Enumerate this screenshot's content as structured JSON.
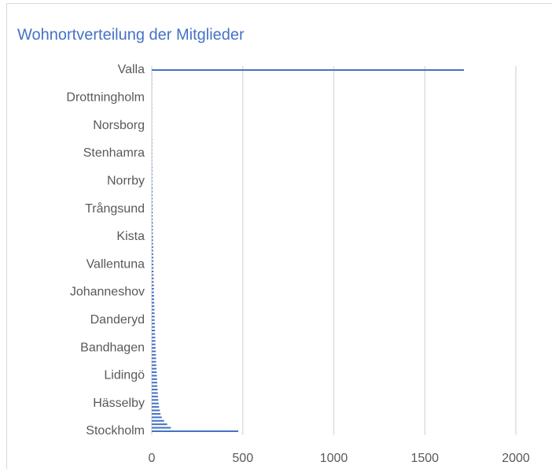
{
  "chart_data": {
    "type": "barh",
    "title": "Wohnortverteilung der Mitglieder",
    "categories": [
      "Stockholm",
      null,
      null,
      null,
      null,
      null,
      null,
      null,
      "Hässelby",
      null,
      null,
      null,
      null,
      null,
      null,
      null,
      "Lidingö",
      null,
      null,
      null,
      null,
      null,
      null,
      null,
      "Bandhagen",
      null,
      null,
      null,
      null,
      null,
      null,
      null,
      "Danderyd",
      null,
      null,
      null,
      null,
      null,
      null,
      null,
      "Johanneshov",
      null,
      null,
      null,
      null,
      null,
      null,
      null,
      "Vallentuna",
      null,
      null,
      null,
      null,
      null,
      null,
      null,
      "Kista",
      null,
      null,
      null,
      null,
      null,
      null,
      null,
      "Trångsund",
      null,
      null,
      null,
      null,
      null,
      null,
      null,
      "Norrby",
      null,
      null,
      null,
      null,
      null,
      null,
      null,
      "Stenhamra",
      null,
      null,
      null,
      null,
      null,
      null,
      null,
      "Norsborg",
      null,
      null,
      null,
      null,
      null,
      null,
      null,
      "Drottningholm",
      null,
      null,
      null,
      null,
      null,
      null,
      null,
      "Valla"
    ],
    "values": [
      475,
      105,
      85,
      68,
      55,
      48,
      44,
      40,
      38,
      36,
      34,
      33,
      32,
      31,
      30,
      29,
      28,
      27,
      26,
      25,
      24,
      24,
      23,
      22,
      21,
      20,
      20,
      19,
      18,
      18,
      17,
      17,
      16,
      16,
      15,
      15,
      14,
      14,
      13,
      13,
      12,
      12,
      12,
      11,
      11,
      10,
      10,
      10,
      9,
      9,
      9,
      8,
      8,
      8,
      7,
      7,
      7,
      6,
      6,
      6,
      6,
      5,
      5,
      5,
      5,
      5,
      4,
      4,
      4,
      4,
      4,
      3,
      3,
      3,
      3,
      3,
      3,
      2,
      2,
      2,
      2,
      2,
      2,
      2,
      2,
      1,
      1,
      1,
      1,
      1,
      1,
      1,
      1,
      1,
      1,
      1,
      1,
      1,
      1,
      1,
      1,
      1,
      1,
      1,
      1715
    ],
    "color": "#4472c4",
    "xlim": [
      0,
      2000
    ],
    "xticks": [
      0,
      500,
      1000,
      1500,
      2000
    ],
    "grid": true
  }
}
